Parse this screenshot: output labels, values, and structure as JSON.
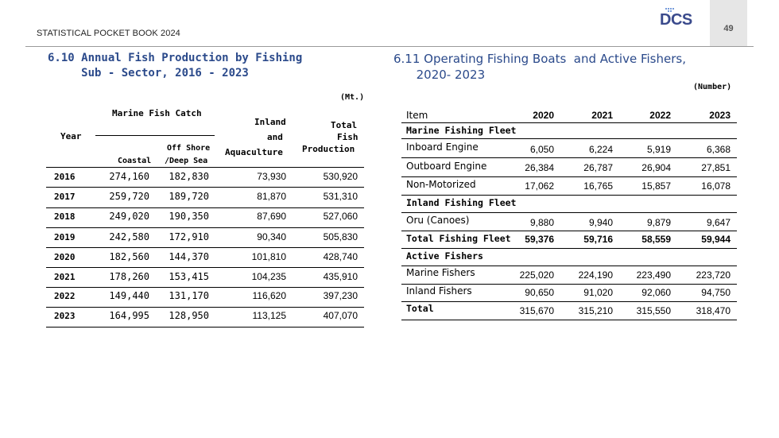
{
  "header": {
    "book_title": "STATISTICAL POCKET BOOK 2024",
    "page_number": "49",
    "logo_text": "DCS"
  },
  "left_table": {
    "title_line1": "6.10 Annual Fish Production by Fishing",
    "title_line2": "     Sub - Sector, 2016 - 2023",
    "unit": "(Mt.)",
    "headers": {
      "year": "Year",
      "marine": "Marine Fish Catch",
      "coastal": "Coastal",
      "offshore_l1": "Off Shore",
      "offshore_l2": "/Deep Sea",
      "inland_l1": "Inland",
      "inland_l2": "and",
      "inland_l3": "Aquaculture",
      "total_l1": "Total",
      "total_l2": "Fish",
      "total_l3": "Production"
    },
    "rows": [
      {
        "year": "2016",
        "coastal": "274,160",
        "offshore": "182,830",
        "inland": "73,930",
        "total": "530,920"
      },
      {
        "year": "2017",
        "coastal": "259,720",
        "offshore": "189,720",
        "inland": "81,870",
        "total": "531,310"
      },
      {
        "year": "2018",
        "coastal": "249,020",
        "offshore": "190,350",
        "inland": "87,690",
        "total": "527,060"
      },
      {
        "year": "2019",
        "coastal": "242,580",
        "offshore": "172,910",
        "inland": "90,340",
        "total": "505,830"
      },
      {
        "year": "2020",
        "coastal": "182,560",
        "offshore": "144,370",
        "inland": "101,810",
        "total": "428,740"
      },
      {
        "year": "2021",
        "coastal": "178,260",
        "offshore": "153,415",
        "inland": "104,235",
        "total": "435,910"
      },
      {
        "year": "2022",
        "coastal": "149,440",
        "offshore": "131,170",
        "inland": "116,620",
        "total": "397,230"
      },
      {
        "year": "2023",
        "coastal": "164,995",
        "offshore": "128,950",
        "inland": "113,125",
        "total": "407,070"
      }
    ]
  },
  "right_table": {
    "title_line1": "6.11 Operating Fishing Boats  and Active Fishers,",
    "title_line2": "      2020- 2023",
    "unit": "(Number)",
    "headers": {
      "item": "Item",
      "y2020": "2020",
      "y2021": "2021",
      "y2022": "2022",
      "y2023": "2023"
    },
    "rows": [
      {
        "label": "Marine Fishing Fleet",
        "v1": "",
        "v2": "",
        "v3": "",
        "v4": ""
      },
      {
        "label": "Inboard Engine",
        "v1": "6,050",
        "v2": "6,224",
        "v3": "5,919",
        "v4": "6,368"
      },
      {
        "label": "Outboard Engine",
        "v1": "26,384",
        "v2": "26,787",
        "v3": "26,904",
        "v4": "27,851"
      },
      {
        "label": "Non-Motorized",
        "v1": "17,062",
        "v2": "16,765",
        "v3": "15,857",
        "v4": "16,078"
      },
      {
        "label": "Inland Fishing Fleet",
        "v1": "",
        "v2": "",
        "v3": "",
        "v4": ""
      },
      {
        "label": "Oru (Canoes)",
        "v1": "9,880",
        "v2": "9,940",
        "v3": "9,879",
        "v4": "9,647"
      },
      {
        "label": "Total Fishing Fleet",
        "v1": "59,376",
        "v2": "59,716",
        "v3": "58,559",
        "v4": "59,944"
      },
      {
        "label": "Active Fishers",
        "v1": "",
        "v2": "",
        "v3": "",
        "v4": ""
      },
      {
        "label": "Marine Fishers",
        "v1": "225,020",
        "v2": "224,190",
        "v3": "223,490",
        "v4": "223,720"
      },
      {
        "label": "Inland Fishers",
        "v1": "90,650",
        "v2": "91,020",
        "v3": "92,060",
        "v4": "94,750"
      },
      {
        "label": "Total",
        "v1": "315,670",
        "v2": "315,210",
        "v3": "315,550",
        "v4": "318,470"
      }
    ]
  }
}
